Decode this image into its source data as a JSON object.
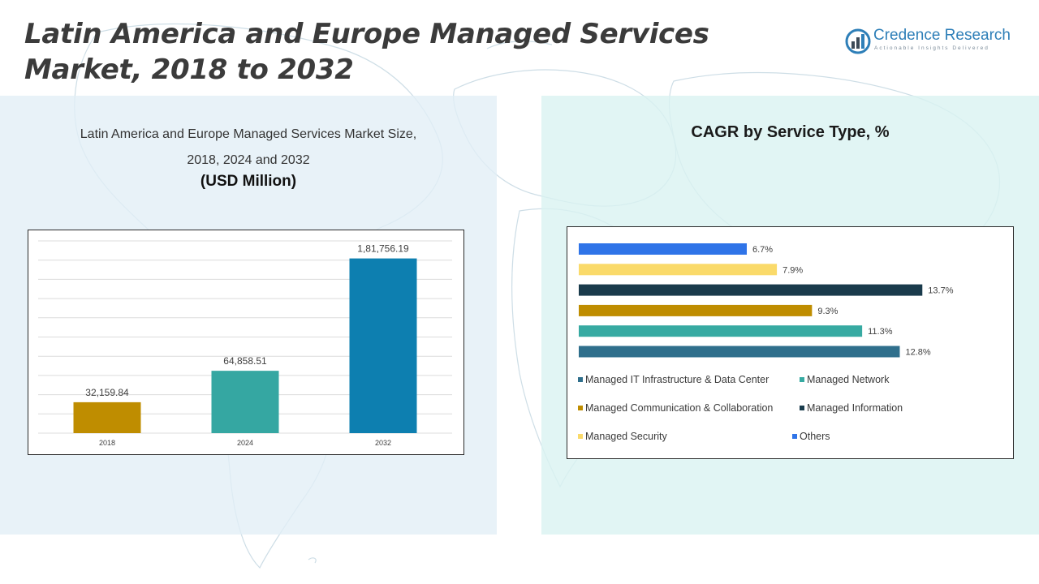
{
  "title": "Latin America and Europe Managed Services Market, 2018 to 2032",
  "logo": {
    "name": "Credence Research",
    "tagline": "Actionable Insights Delivered",
    "icon": "bar-chart-globe-icon"
  },
  "left_panel": {
    "chart_title_line1": "Latin America and Europe Managed Services Market Size,",
    "chart_title_line2": "2018, 2024 and 2032",
    "chart_units": "(USD Million)"
  },
  "right_panel": {
    "chart_title": "CAGR by Service Type, %"
  },
  "colors": {
    "bar_2018": "#bf8d00",
    "bar_2024": "#35a7a2",
    "bar_2032": "#0d7fb0",
    "managed_it": "#2f6f8c",
    "managed_network": "#37aaa2",
    "managed_comm": "#bf8d00",
    "managed_info": "#1a3b4c",
    "managed_security": "#fada6a",
    "others": "#2f74e8"
  },
  "chart_data": [
    {
      "type": "bar",
      "categories": [
        "2018",
        "2024",
        "2032"
      ],
      "values": [
        32159.84,
        64858.51,
        181756.19
      ],
      "value_labels": [
        "32,159.84",
        "64,858.51",
        "1,81,756.19"
      ],
      "ylim": [
        0,
        200000
      ],
      "grid": true,
      "legend": "none"
    },
    {
      "type": "bar",
      "orientation": "horizontal",
      "categories": [
        "Others",
        "Managed Security",
        "Managed Information",
        "Managed Communication & Collaboration",
        "Managed Network",
        "Managed IT Infrastructure & Data Center"
      ],
      "values": [
        6.7,
        7.9,
        13.7,
        9.3,
        11.3,
        12.8
      ],
      "value_labels": [
        "6.7%",
        "7.9%",
        "13.7%",
        "9.3%",
        "11.3%",
        "12.8%"
      ],
      "xlim": [
        0,
        14.5
      ],
      "grid": false,
      "legend": "bottom",
      "legend_entries": [
        "Managed IT Infrastructure & Data Center",
        "Managed Network",
        "Managed Communication & Collaboration",
        "Managed Information",
        "Managed Security",
        "Others"
      ]
    }
  ]
}
